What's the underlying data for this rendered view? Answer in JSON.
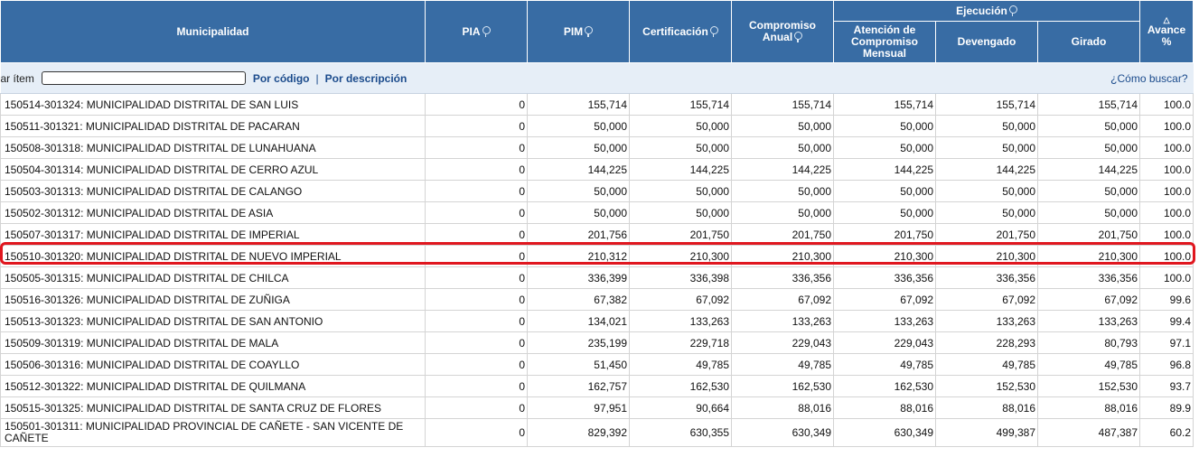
{
  "headers": {
    "municipalidad": "Municipalidad",
    "pia": "PIA",
    "pim": "PIM",
    "certificacion": "Certificación",
    "compromiso_anual": "Compromiso Anual",
    "ejecucion": "Ejecución",
    "atencion": "Atención de Compromiso Mensual",
    "devengado": "Devengado",
    "girado": "Girado",
    "avance": "Avance %"
  },
  "search": {
    "label": "scar ítem",
    "input_value": "",
    "by_code": "Por código",
    "separator": "|",
    "by_description": "Por descripción",
    "help": "¿Cómo buscar?"
  },
  "rows": [
    {
      "name": "150514-301324: MUNICIPALIDAD DISTRITAL DE SAN LUIS",
      "pia": "0",
      "pim": "155,714",
      "cert": "155,714",
      "comp": "155,714",
      "aten": "155,714",
      "dev": "155,714",
      "gir": "155,714",
      "avance": "100.0"
    },
    {
      "name": "150511-301321: MUNICIPALIDAD DISTRITAL DE PACARAN",
      "pia": "0",
      "pim": "50,000",
      "cert": "50,000",
      "comp": "50,000",
      "aten": "50,000",
      "dev": "50,000",
      "gir": "50,000",
      "avance": "100.0"
    },
    {
      "name": "150508-301318: MUNICIPALIDAD DISTRITAL DE LUNAHUANA",
      "pia": "0",
      "pim": "50,000",
      "cert": "50,000",
      "comp": "50,000",
      "aten": "50,000",
      "dev": "50,000",
      "gir": "50,000",
      "avance": "100.0"
    },
    {
      "name": "150504-301314: MUNICIPALIDAD DISTRITAL DE CERRO AZUL",
      "pia": "0",
      "pim": "144,225",
      "cert": "144,225",
      "comp": "144,225",
      "aten": "144,225",
      "dev": "144,225",
      "gir": "144,225",
      "avance": "100.0"
    },
    {
      "name": "150503-301313: MUNICIPALIDAD DISTRITAL DE CALANGO",
      "pia": "0",
      "pim": "50,000",
      "cert": "50,000",
      "comp": "50,000",
      "aten": "50,000",
      "dev": "50,000",
      "gir": "50,000",
      "avance": "100.0"
    },
    {
      "name": "150502-301312: MUNICIPALIDAD DISTRITAL DE ASIA",
      "pia": "0",
      "pim": "50,000",
      "cert": "50,000",
      "comp": "50,000",
      "aten": "50,000",
      "dev": "50,000",
      "gir": "50,000",
      "avance": "100.0"
    },
    {
      "name": "150507-301317: MUNICIPALIDAD DISTRITAL DE IMPERIAL",
      "pia": "0",
      "pim": "201,756",
      "cert": "201,750",
      "comp": "201,750",
      "aten": "201,750",
      "dev": "201,750",
      "gir": "201,750",
      "avance": "100.0"
    },
    {
      "name": "150510-301320: MUNICIPALIDAD DISTRITAL DE NUEVO IMPERIAL",
      "pia": "0",
      "pim": "210,312",
      "cert": "210,300",
      "comp": "210,300",
      "aten": "210,300",
      "dev": "210,300",
      "gir": "210,300",
      "avance": "100.0"
    },
    {
      "name": "150505-301315: MUNICIPALIDAD DISTRITAL DE CHILCA",
      "pia": "0",
      "pim": "336,399",
      "cert": "336,398",
      "comp": "336,356",
      "aten": "336,356",
      "dev": "336,356",
      "gir": "336,356",
      "avance": "100.0"
    },
    {
      "name": "150516-301326: MUNICIPALIDAD DISTRITAL DE ZUÑIGA",
      "pia": "0",
      "pim": "67,382",
      "cert": "67,092",
      "comp": "67,092",
      "aten": "67,092",
      "dev": "67,092",
      "gir": "67,092",
      "avance": "99.6"
    },
    {
      "name": "150513-301323: MUNICIPALIDAD DISTRITAL DE SAN ANTONIO",
      "pia": "0",
      "pim": "134,021",
      "cert": "133,263",
      "comp": "133,263",
      "aten": "133,263",
      "dev": "133,263",
      "gir": "133,263",
      "avance": "99.4"
    },
    {
      "name": "150509-301319: MUNICIPALIDAD DISTRITAL DE MALA",
      "pia": "0",
      "pim": "235,199",
      "cert": "229,718",
      "comp": "229,043",
      "aten": "229,043",
      "dev": "228,293",
      "gir": "80,793",
      "avance": "97.1"
    },
    {
      "name": "150506-301316: MUNICIPALIDAD DISTRITAL DE COAYLLO",
      "pia": "0",
      "pim": "51,450",
      "cert": "49,785",
      "comp": "49,785",
      "aten": "49,785",
      "dev": "49,785",
      "gir": "49,785",
      "avance": "96.8"
    },
    {
      "name": "150512-301322: MUNICIPALIDAD DISTRITAL DE QUILMANA",
      "pia": "0",
      "pim": "162,757",
      "cert": "162,530",
      "comp": "162,530",
      "aten": "162,530",
      "dev": "152,530",
      "gir": "152,530",
      "avance": "93.7"
    },
    {
      "name": "150515-301325: MUNICIPALIDAD DISTRITAL DE SANTA CRUZ DE FLORES",
      "pia": "0",
      "pim": "97,951",
      "cert": "90,664",
      "comp": "88,016",
      "aten": "88,016",
      "dev": "88,016",
      "gir": "88,016",
      "avance": "89.9"
    },
    {
      "name": "150501-301311: MUNICIPALIDAD PROVINCIAL DE CAÑETE - SAN VICENTE DE CAÑETE",
      "pia": "0",
      "pim": "829,392",
      "cert": "630,355",
      "comp": "630,349",
      "aten": "630,349",
      "dev": "499,387",
      "gir": "487,387",
      "avance": "60.2"
    }
  ],
  "highlight_color": "#e0171f",
  "header_color": "#386ca4"
}
